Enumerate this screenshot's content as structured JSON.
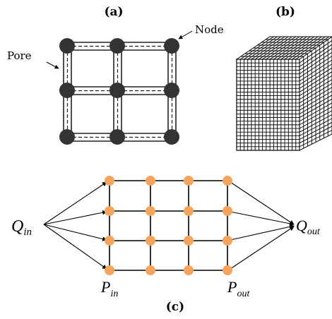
{
  "panels": {
    "a": {
      "label": "(a)",
      "node_label": "Node",
      "pore_label": "Pore",
      "node_color": "#333333"
    },
    "b": {
      "label": "(b)",
      "grid_color": "#000000"
    },
    "c": {
      "label": "(c)",
      "q_in": {
        "main": "Q",
        "sub": "in"
      },
      "q_out": {
        "main": "Q",
        "sub": "out"
      },
      "p_in": {
        "main": "P",
        "sub": "in"
      },
      "p_out": {
        "main": "P",
        "sub": "out"
      },
      "node_color": "#f5a45d",
      "rows": 4,
      "cols": 4
    }
  }
}
